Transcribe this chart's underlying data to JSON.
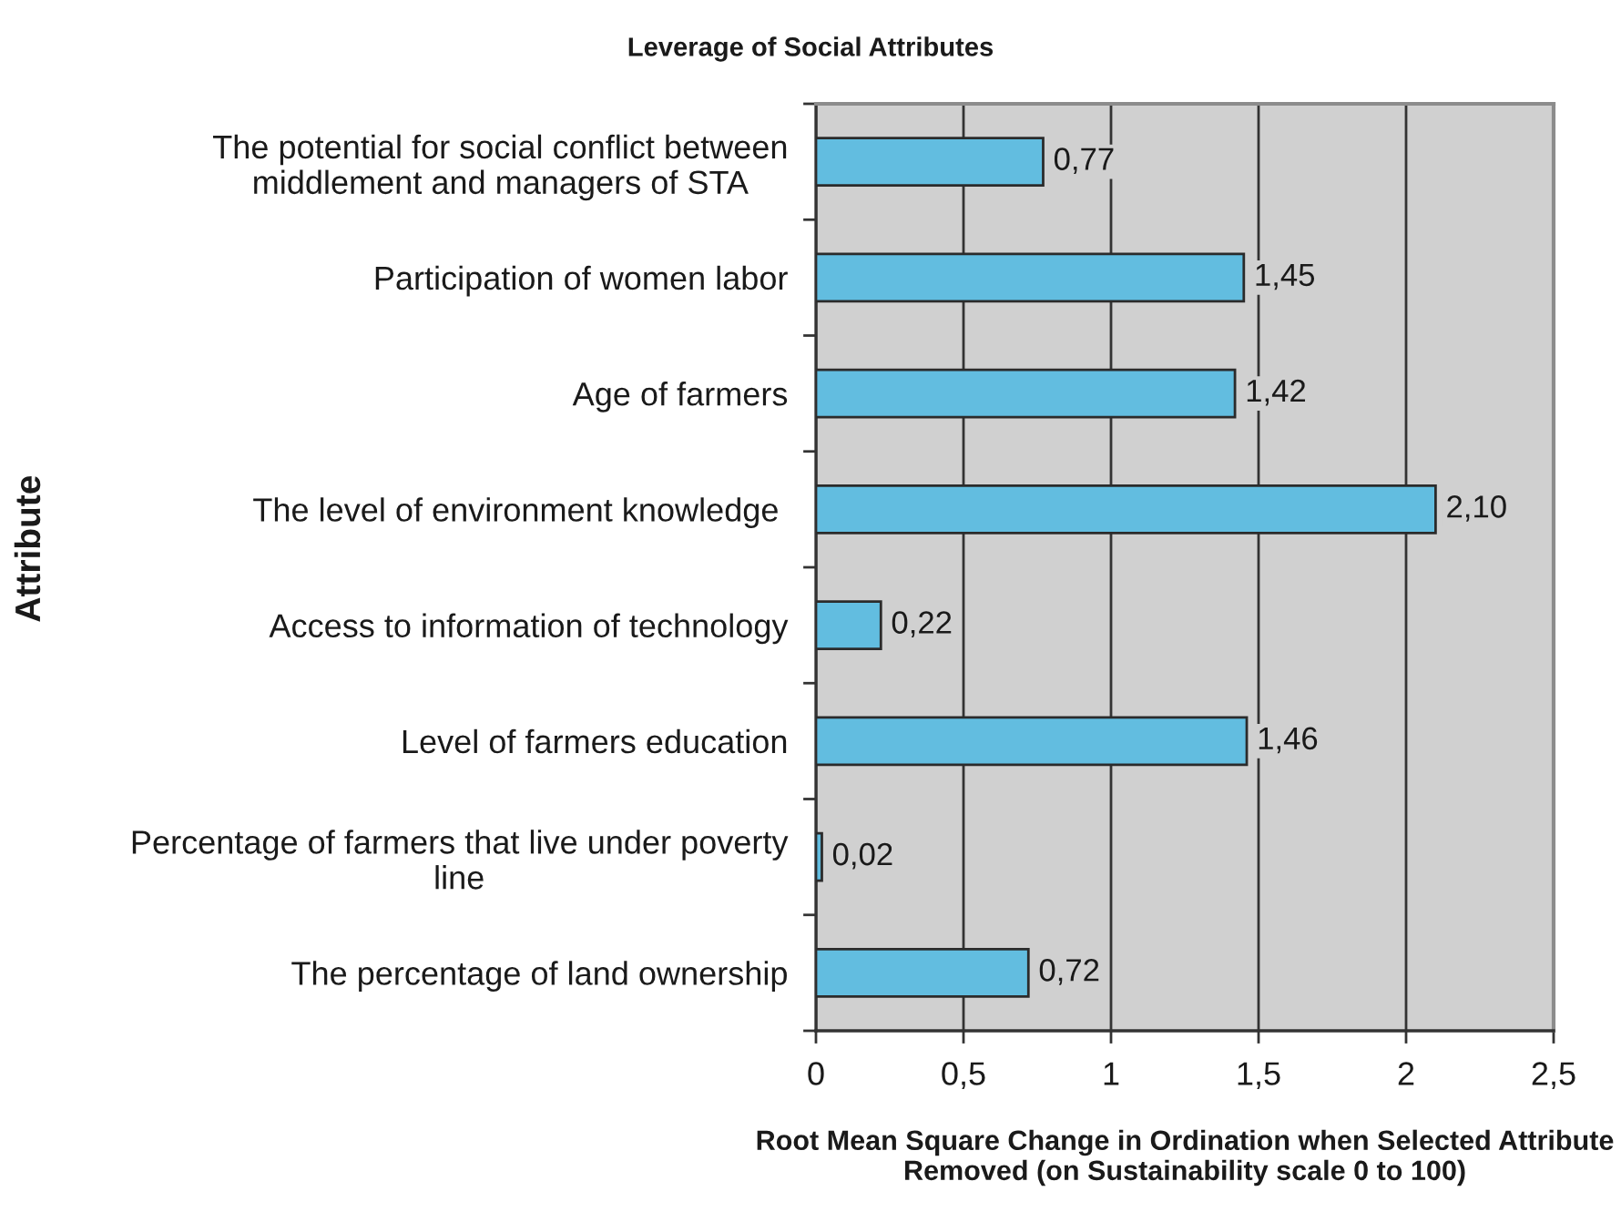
{
  "chart_data": {
    "type": "bar",
    "orientation": "horizontal",
    "title": "Leverage of Social Attributes",
    "xlabel": "Root Mean Square Change in Ordination when Selected Attribute\nRemoved (on Sustainability scale 0 to 100)",
    "ylabel": "Attribute",
    "categories": [
      "The potential for social conflict between\nmiddlement and managers of STA",
      "Participation of women labor",
      "Age of farmers",
      "The level of environment knowledge ",
      "Access to information of technology",
      "Level of farmers education",
      "Percentage of farmers that live under poverty\nline",
      "The percentage of land ownership"
    ],
    "values": [
      0.77,
      1.45,
      1.42,
      2.1,
      0.22,
      1.46,
      0.02,
      0.72
    ],
    "value_labels": [
      "0,77",
      "1,45",
      "1,42",
      "2,10",
      "0,22",
      "1,46",
      "0,02",
      "0,72"
    ],
    "color": "#62bde0",
    "xlim": [
      0,
      2.5
    ],
    "xticks": [
      0,
      {
        "value": 0.5,
        "label": "0,5"
      },
      1,
      {
        "value": 1.5,
        "label": "1,5"
      },
      2,
      {
        "value": 2.5,
        "label": "2,5"
      }
    ],
    "grid": "x"
  }
}
